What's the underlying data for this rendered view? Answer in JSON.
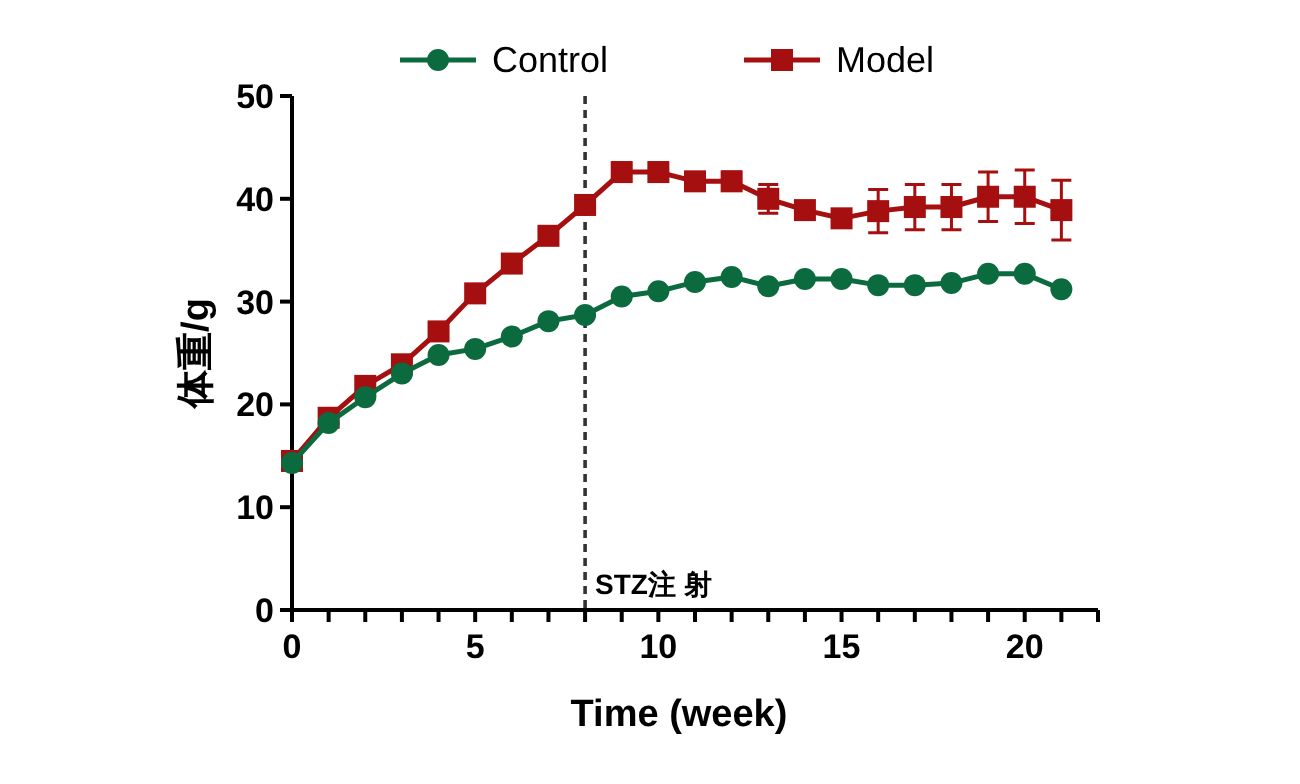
{
  "chart_data": {
    "type": "line",
    "xlabel": "Time (week)",
    "ylabel": "体重/g",
    "x": [
      0,
      1,
      2,
      3,
      4,
      5,
      6,
      7,
      8,
      9,
      10,
      11,
      12,
      13,
      14,
      15,
      16,
      17,
      18,
      19,
      20,
      21
    ],
    "series": [
      {
        "name": "Control",
        "color": "#0b6b3f",
        "marker": "circle",
        "values": [
          14.3,
          18.2,
          20.7,
          23.0,
          24.8,
          25.4,
          26.6,
          28.1,
          28.7,
          30.5,
          31.0,
          31.9,
          32.4,
          31.5,
          32.2,
          32.2,
          31.6,
          31.6,
          31.8,
          32.7,
          32.7,
          31.2
        ]
      },
      {
        "name": "Model",
        "color": "#a50f0f",
        "marker": "square",
        "values": [
          14.5,
          18.7,
          21.8,
          23.9,
          27.1,
          30.8,
          33.7,
          36.4,
          39.4,
          42.6,
          42.6,
          41.7,
          41.7,
          40.0,
          38.9,
          38.1,
          38.8,
          39.2,
          39.2,
          40.2,
          40.2,
          38.9
        ],
        "errors": [
          null,
          null,
          null,
          null,
          null,
          null,
          null,
          null,
          null,
          0.9,
          0.9,
          null,
          0.9,
          1.4,
          null,
          null,
          2.1,
          2.2,
          2.2,
          2.4,
          2.6,
          2.9
        ]
      }
    ],
    "xlim": [
      0,
      22
    ],
    "ylim": [
      0,
      50
    ],
    "xticks": [
      0,
      {
        "value": 1,
        "label": null
      },
      {
        "value": 2,
        "label": null
      },
      {
        "value": 3,
        "label": null
      },
      {
        "value": 4,
        "label": null
      },
      5,
      {
        "value": 6,
        "label": null
      },
      {
        "value": 7,
        "label": null
      },
      {
        "value": 8,
        "label": null
      },
      {
        "value": 9,
        "label": null
      },
      10,
      {
        "value": 11,
        "label": null
      },
      {
        "value": 12,
        "label": null
      },
      {
        "value": 13,
        "label": null
      },
      {
        "value": 14,
        "label": null
      },
      15,
      {
        "value": 16,
        "label": null
      },
      {
        "value": 17,
        "label": null
      },
      {
        "value": 18,
        "label": null
      },
      {
        "value": 19,
        "label": null
      },
      20,
      {
        "value": 21,
        "label": null
      },
      {
        "value": 22,
        "label": null
      }
    ],
    "yticks": [
      0,
      10,
      20,
      30,
      40,
      50
    ],
    "ref_lines": [
      {
        "axis": "x",
        "value": 8,
        "label": "STZ注 射",
        "color": "#333333",
        "line_style": "dashed"
      }
    ],
    "legend": "top",
    "grid": false,
    "line_style": "solid"
  }
}
